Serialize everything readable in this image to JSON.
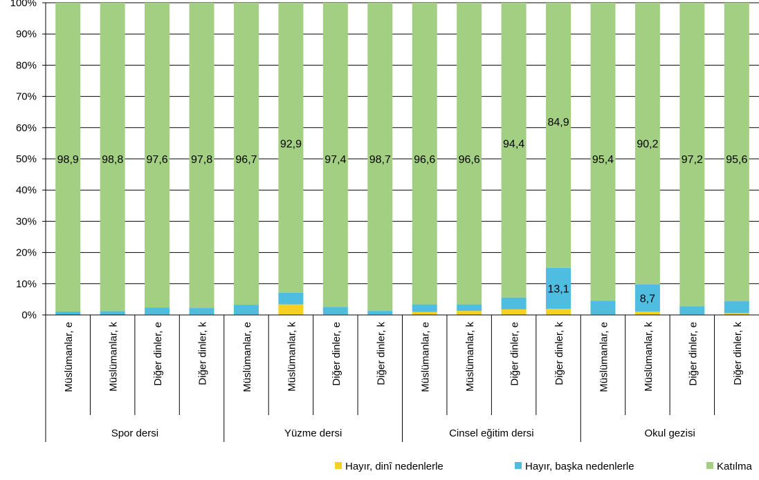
{
  "chart_data": {
    "type": "bar",
    "stacked": true,
    "categories": [
      "Müslümanlar, e",
      "Müslümanlar, k",
      "Diğer dinler, e",
      "Diğer dinler, k",
      "Müslümanlar, e",
      "Müslümanlar, k",
      "Diğer dinler, e",
      "Diğer dinler, k",
      "Müslümanlar, e",
      "Müslümanlar, k",
      "Diğer dinler, e",
      "Diğer dinler, k",
      "Müslümanlar, e",
      "Müslümanlar, k",
      "Diğer dinler, e",
      "Diğer dinler, k"
    ],
    "groups": [
      {
        "label": "Spor dersi",
        "count": 4
      },
      {
        "label": "Yüzme dersi",
        "count": 4
      },
      {
        "label": "Cinsel eğitim dersi",
        "count": 4
      },
      {
        "label": "Okul gezisi",
        "count": 4
      }
    ],
    "series": [
      {
        "name": "Hayır, dinî nedenlerle",
        "color": "#f5d21f",
        "values": [
          0.1,
          0.1,
          0.2,
          0.2,
          0.2,
          3.4,
          0.2,
          0.2,
          1.0,
          1.3,
          1.8,
          2.0,
          0.2,
          1.1,
          0.2,
          0.6
        ]
      },
      {
        "name": "Hayır, başka nedenlerle",
        "color": "#4ebde0",
        "values": [
          1.0,
          1.1,
          2.2,
          2.0,
          3.1,
          3.7,
          2.4,
          1.1,
          2.4,
          2.1,
          3.8,
          13.1,
          4.4,
          8.7,
          2.6,
          3.8
        ]
      },
      {
        "name": "Katılma",
        "color": "#a3cf82",
        "values": [
          98.9,
          98.8,
          97.6,
          97.8,
          96.7,
          92.9,
          97.4,
          98.7,
          96.6,
          96.6,
          94.4,
          84.9,
          95.4,
          90.2,
          97.2,
          95.6
        ]
      }
    ],
    "data_labels": [
      {
        "index": 0,
        "series": 2,
        "text": "98,9"
      },
      {
        "index": 1,
        "series": 2,
        "text": "98,8"
      },
      {
        "index": 2,
        "series": 2,
        "text": "97,6"
      },
      {
        "index": 3,
        "series": 2,
        "text": "97,8"
      },
      {
        "index": 4,
        "series": 2,
        "text": "96,7"
      },
      {
        "index": 5,
        "series": 2,
        "text": "92,9"
      },
      {
        "index": 6,
        "series": 2,
        "text": "97,4"
      },
      {
        "index": 7,
        "series": 2,
        "text": "98,7"
      },
      {
        "index": 8,
        "series": 2,
        "text": "96,6"
      },
      {
        "index": 9,
        "series": 2,
        "text": "96,6"
      },
      {
        "index": 10,
        "series": 2,
        "text": "94,4"
      },
      {
        "index": 11,
        "series": 2,
        "text": "84,9"
      },
      {
        "index": 12,
        "series": 2,
        "text": "95,4"
      },
      {
        "index": 13,
        "series": 2,
        "text": "90,2"
      },
      {
        "index": 14,
        "series": 2,
        "text": "97,2"
      },
      {
        "index": 15,
        "series": 2,
        "text": "95,6"
      },
      {
        "index": 11,
        "series": 1,
        "text": "13,1"
      },
      {
        "index": 13,
        "series": 1,
        "text": "8,7"
      }
    ],
    "y_ticks": [
      "0%",
      "10%",
      "20%",
      "30%",
      "40%",
      "50%",
      "60%",
      "70%",
      "80%",
      "90%",
      "100%"
    ],
    "ylim": [
      0,
      100
    ],
    "grid": true,
    "legend_position": "bottom-right"
  }
}
